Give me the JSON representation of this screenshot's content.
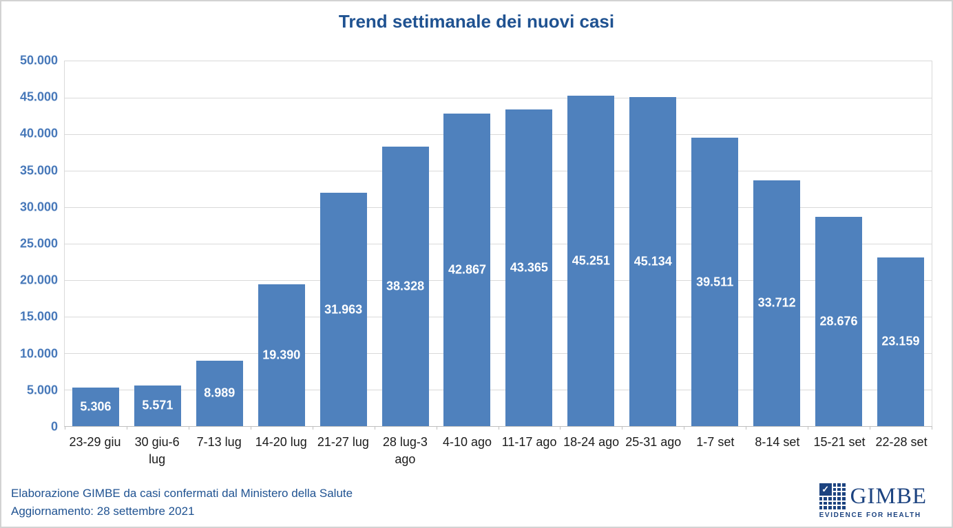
{
  "title": "Trend settimanale dei nuovi casi",
  "chart_data": {
    "type": "bar",
    "title": "Trend settimanale dei nuovi casi",
    "categories": [
      "23-29 giu",
      "30 giu-6 lug",
      "7-13 lug",
      "14-20 lug",
      "21-27 lug",
      "28 lug-3 ago",
      "4-10 ago",
      "11-17 ago",
      "18-24 ago",
      "25-31 ago",
      "1-7 set",
      "8-14 set",
      "15-21 set",
      "22-28 set"
    ],
    "values": [
      5306,
      5571,
      8989,
      19390,
      31963,
      38328,
      42867,
      43365,
      45251,
      45134,
      39511,
      33712,
      28676,
      23159
    ],
    "value_labels": [
      "5.306",
      "5.571",
      "8.989",
      "19.390",
      "31.963",
      "38.328",
      "42.867",
      "43.365",
      "45.251",
      "45.134",
      "39.511",
      "33.712",
      "28.676",
      "23.159"
    ],
    "xlabel": "",
    "ylabel": "",
    "ylim": [
      0,
      50000
    ],
    "ytick_step": 5000,
    "ytick_labels": [
      "0",
      "5.000",
      "10.000",
      "15.000",
      "20.000",
      "25.000",
      "30.000",
      "35.000",
      "40.000",
      "45.000",
      "50.000"
    ],
    "grid": true,
    "legend": false,
    "bar_color": "#4f81bd",
    "bar_label_color": "#ffffff",
    "axis_label_color": "#4778b9",
    "gridline_color": "#d9d9d9"
  },
  "footer": {
    "line1": "Elaborazione GIMBE da casi confermati dal Ministero della Salute",
    "line2": "Aggiornamento: 28 settembre 2021"
  },
  "logo": {
    "wordmark": "GIMBE",
    "tagline": "EVIDENCE FOR HEALTH",
    "check_glyph": "✓",
    "color": "#1c4380"
  },
  "colors": {
    "title": "#1f5291",
    "footer_text": "#1f5291",
    "bar": "#4f81bd",
    "plot_border": "#d9d9d9",
    "outer_border": "#d2d2d2"
  }
}
